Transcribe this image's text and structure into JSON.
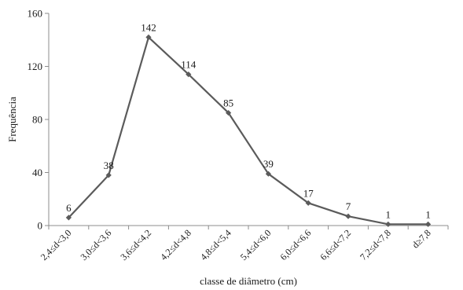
{
  "chart_data": {
    "type": "line",
    "title": "",
    "xlabel": "classe de diâmetro (cm)",
    "ylabel": "Frequência",
    "categories": [
      "2,4≤d<3,0",
      "3,0≤d<3,6",
      "3,6≤d<4,2",
      "4,2≤d<4,8",
      "4,8≤d<5,4",
      "5,4≤d<6,0",
      "6,0≤d<6,6",
      "6,6≤d<7,2",
      "7,2≤d<7,8",
      "d≥7,8"
    ],
    "series": [
      {
        "values": [
          6,
          38,
          142,
          114,
          85,
          39,
          17,
          7,
          1,
          1
        ]
      }
    ],
    "data_labels": [
      "6",
      "38",
      "142",
      "114",
      "85",
      "39",
      "17",
      "7",
      "1",
      "1"
    ],
    "yticks": [
      0,
      40,
      80,
      120,
      160
    ],
    "ylim": [
      0,
      160
    ],
    "grid": false,
    "legend": "none",
    "colors": {
      "line": "#5b5b5b",
      "marker": "#5b5b5b",
      "axis": "#8c8c8c"
    }
  }
}
